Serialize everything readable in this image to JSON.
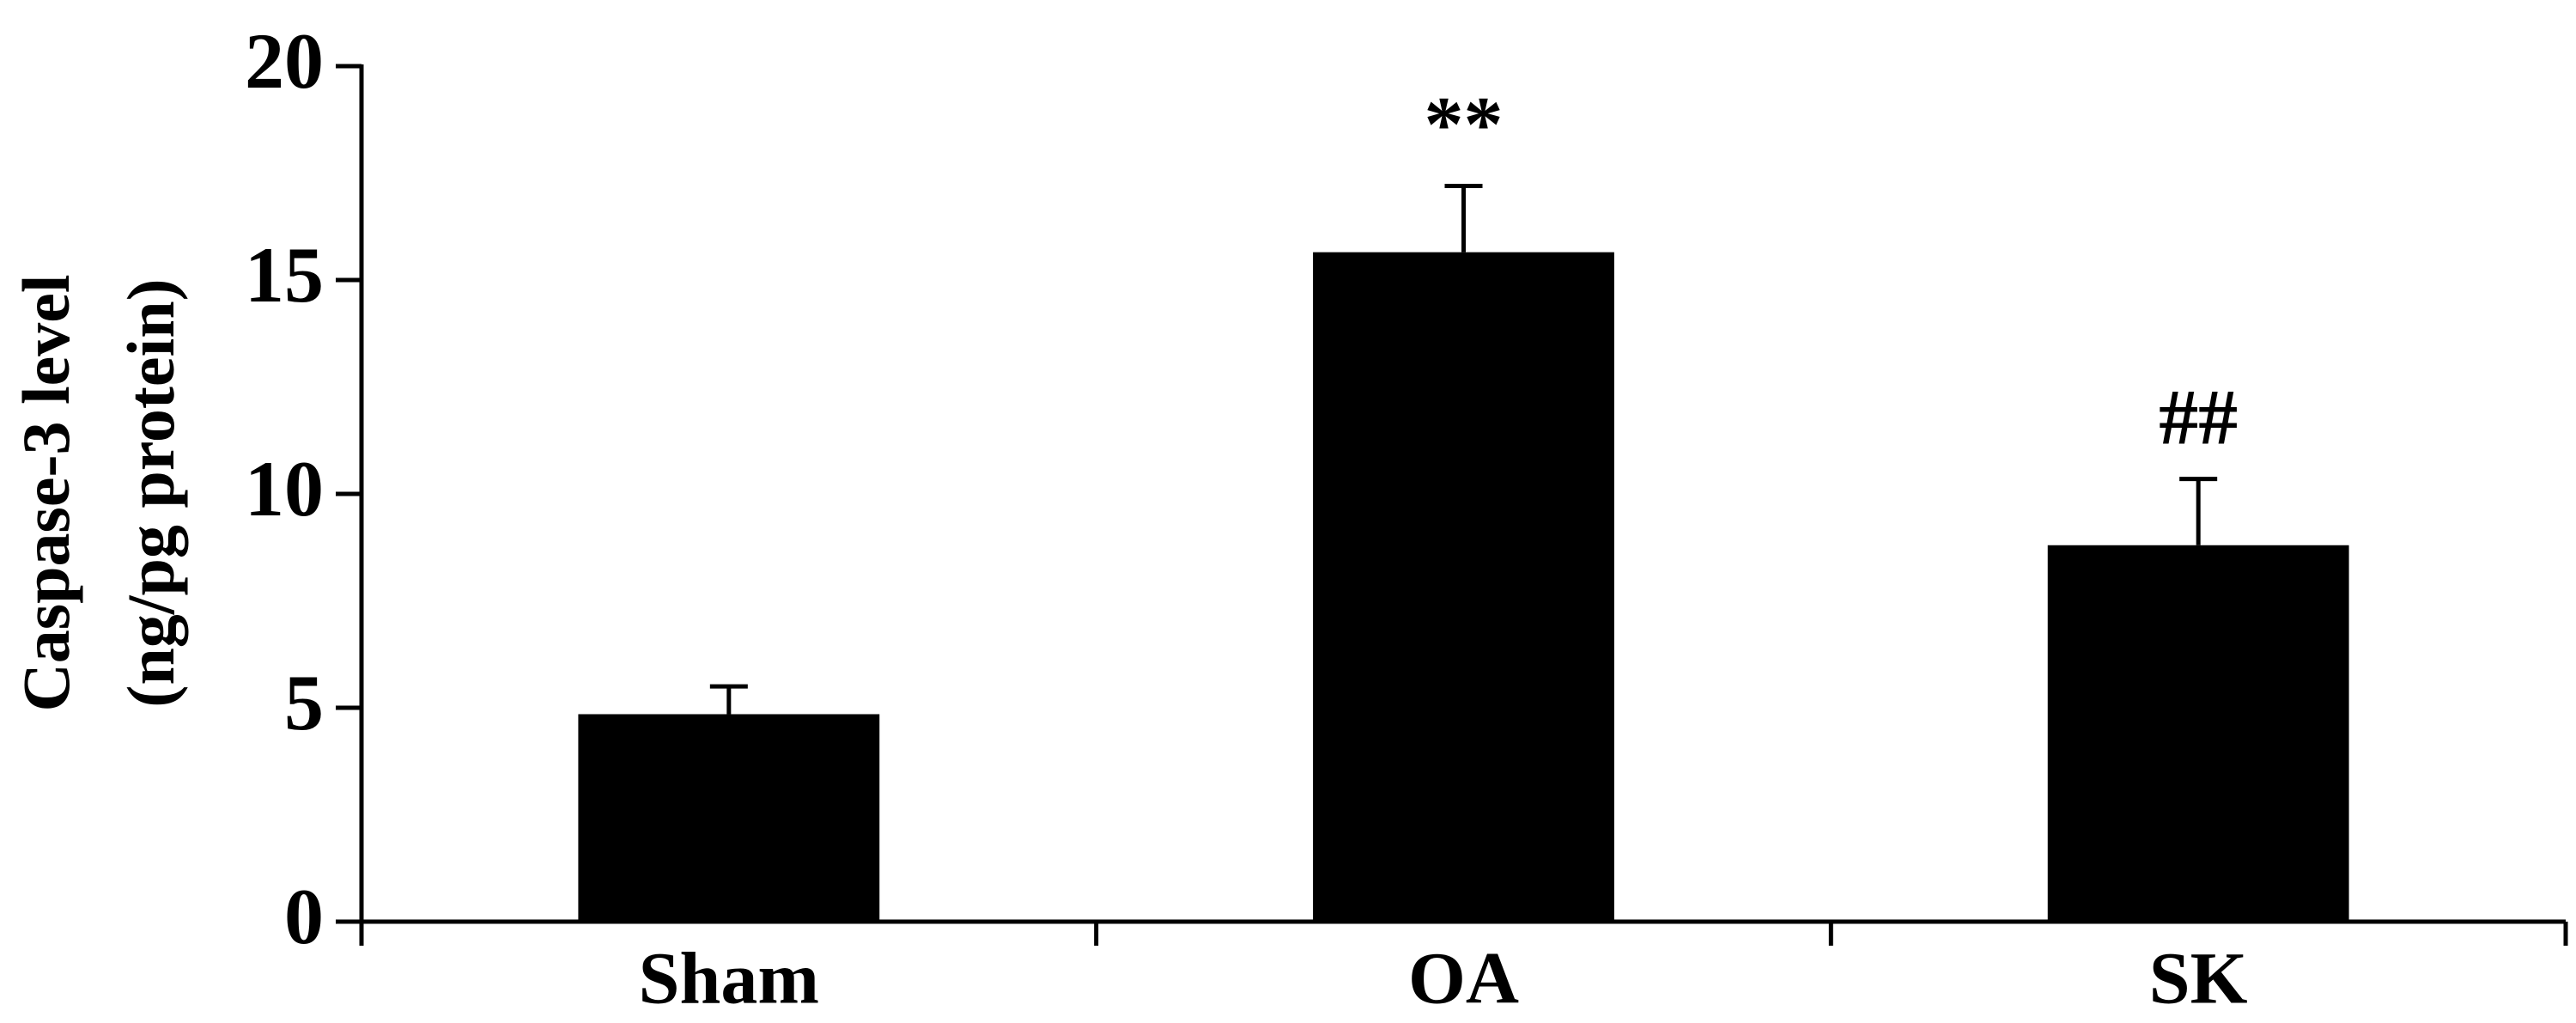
{
  "chart_data": {
    "type": "bar",
    "y_label": [
      "Caspase-3 level",
      "(ng/pg protein)"
    ],
    "categories": [
      "Sham",
      "OA",
      "SK"
    ],
    "values": [
      4.85,
      15.65,
      8.8
    ],
    "errors": [
      0.65,
      1.55,
      1.55
    ],
    "color": "#000000",
    "annotations": [
      {
        "x": "OA",
        "text": "**"
      },
      {
        "x": "SK",
        "text": "##"
      }
    ],
    "ylim": [
      0,
      20
    ],
    "yticks": [
      0,
      5,
      10,
      15,
      20
    ],
    "grid": false
  }
}
